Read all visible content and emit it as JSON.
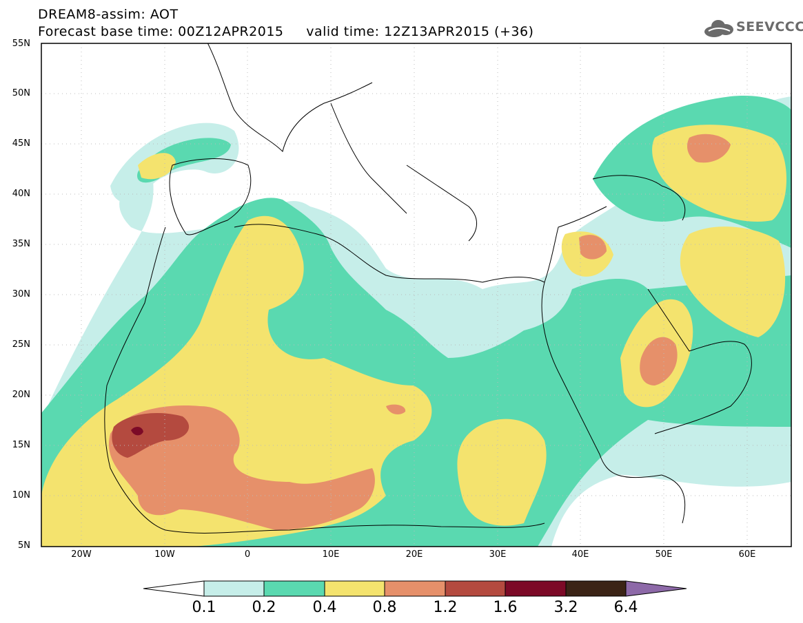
{
  "title": {
    "line1": "DREAM8-assim: AOT",
    "line2": "Forecast base time: 00Z12APR2015     valid time: 12Z13APR2015 (+36)"
  },
  "logo": {
    "text": "SEEVCCC",
    "icon": "cloud-icon"
  },
  "map": {
    "variable": "AOT",
    "region": {
      "lon_min": -25,
      "lon_max": 65,
      "lat_min": 5,
      "lat_max": 55
    },
    "lat_labels": [
      "55N",
      "50N",
      "45N",
      "40N",
      "35N",
      "30N",
      "25N",
      "20N",
      "15N",
      "10N",
      "5N"
    ],
    "lon_labels": [
      "20W",
      "10W",
      "0",
      "10E",
      "20E",
      "30E",
      "40E",
      "50E",
      "60E"
    ],
    "grid": true
  },
  "colorbar": {
    "labels": [
      "0.1",
      "0.2",
      "0.4",
      "0.8",
      "1.2",
      "1.6",
      "3.2",
      "6.4"
    ],
    "colors": [
      "#ffffff",
      "#c6eee9",
      "#5ad9b0",
      "#f4e36e",
      "#e6906a",
      "#b44a3f",
      "#7c0a27",
      "#3b2416",
      "#8d69a8"
    ]
  }
}
